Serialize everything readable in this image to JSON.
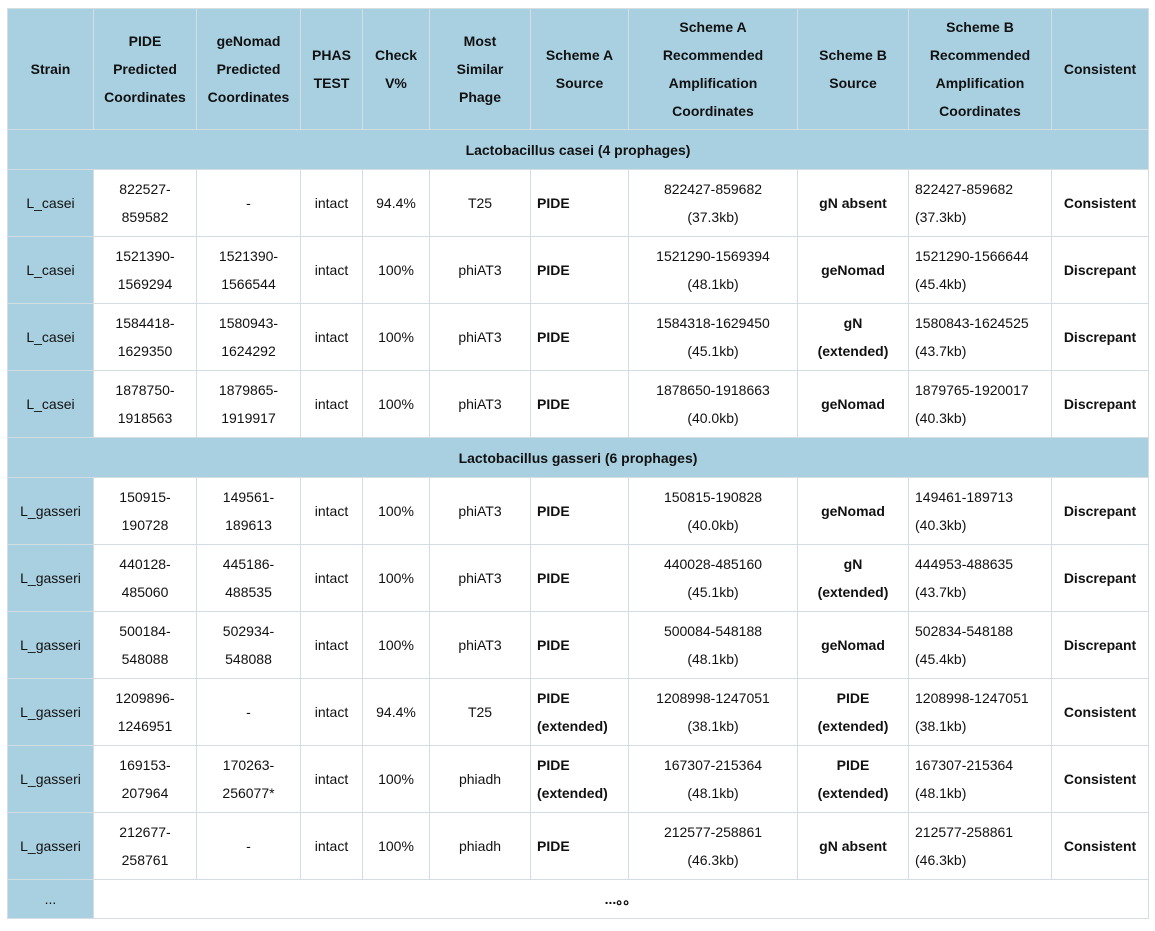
{
  "table": {
    "header": [
      "Strain",
      "PIDE\nPredicted\nCoordinates",
      "geNomad\nPredicted\nCoordinates",
      "PHAS\nTEST",
      "Check\nV%",
      "Most\nSimilar\nPhage",
      "Scheme A\nSource",
      "Scheme A\nRecommended\nAmplification\nCoordinates",
      "Scheme B\nSource",
      "Scheme B\nRecommended\nAmplification\nCoordinates",
      "Consistent"
    ],
    "sections": [
      {
        "title": "Lactobacillus casei (4 prophages)",
        "rows": [
          [
            "L_casei",
            "822527-\n859582",
            "-",
            "intact",
            "94.4%",
            "T25",
            "PIDE",
            "822427-859682\n(37.3kb)",
            "gN absent",
            "822427-859682\n(37.3kb)",
            "Consistent"
          ],
          [
            "L_casei",
            "1521390-\n1569294",
            "1521390-\n1566544",
            "intact",
            "100%",
            "phiAT3",
            "PIDE",
            "1521290-1569394\n(48.1kb)",
            "geNomad",
            "1521290-1566644\n(45.4kb)",
            "Discrepant"
          ],
          [
            "L_casei",
            "1584418-\n1629350",
            "1580943-\n1624292",
            "intact",
            "100%",
            "phiAT3",
            "PIDE",
            "1584318-1629450\n(45.1kb)",
            "gN\n(extended)",
            "1580843-1624525\n(43.7kb)",
            "Discrepant"
          ],
          [
            "L_casei",
            "1878750-\n1918563",
            "1879865-\n1919917",
            "intact",
            "100%",
            "phiAT3",
            "PIDE",
            "1878650-1918663\n(40.0kb)",
            "geNomad",
            "1879765-1920017\n(40.3kb)",
            "Discrepant"
          ]
        ]
      },
      {
        "title": "Lactobacillus gasseri (6 prophages)",
        "rows": [
          [
            "L_gasseri",
            "150915-\n190728",
            "149561-\n189613",
            "intact",
            "100%",
            "phiAT3",
            "PIDE",
            "150815-190828\n(40.0kb)",
            "geNomad",
            "149461-189713\n(40.3kb)",
            "Discrepant"
          ],
          [
            "L_gasseri",
            "440128-\n485060",
            "445186-\n488535",
            "intact",
            "100%",
            "phiAT3",
            "PIDE",
            "440028-485160\n(45.1kb)",
            "gN\n(extended)",
            "444953-488635\n(43.7kb)",
            "Discrepant"
          ],
          [
            "L_gasseri",
            "500184-\n548088",
            "502934-\n548088",
            "intact",
            "100%",
            "phiAT3",
            "PIDE",
            "500084-548188\n(48.1kb)",
            "geNomad",
            "502834-548188\n(45.4kb)",
            "Discrepant"
          ],
          [
            "L_gasseri",
            "1209896-\n1246951",
            "-",
            "intact",
            "94.4%",
            "T25",
            "PIDE\n(extended)",
            "1208998-1247051\n(38.1kb)",
            "PIDE\n(extended)",
            "1208998-1247051\n(38.1kb)",
            "Consistent"
          ],
          [
            "L_gasseri",
            "169153-\n207964",
            "170263-\n256077*",
            "intact",
            "100%",
            "phiadh",
            "PIDE\n(extended)",
            "167307-215364\n(48.1kb)",
            "PIDE\n(extended)",
            "167307-215364\n(48.1kb)",
            "Consistent"
          ],
          [
            "L_gasseri",
            "212677-\n258761",
            "-",
            "intact",
            "100%",
            "phiadh",
            "PIDE",
            "212577-258861\n(46.3kb)",
            "gN absent",
            "212577-258861\n(46.3kb)",
            "Consistent"
          ]
        ]
      }
    ],
    "footer": [
      "...",
      "...。。"
    ]
  }
}
